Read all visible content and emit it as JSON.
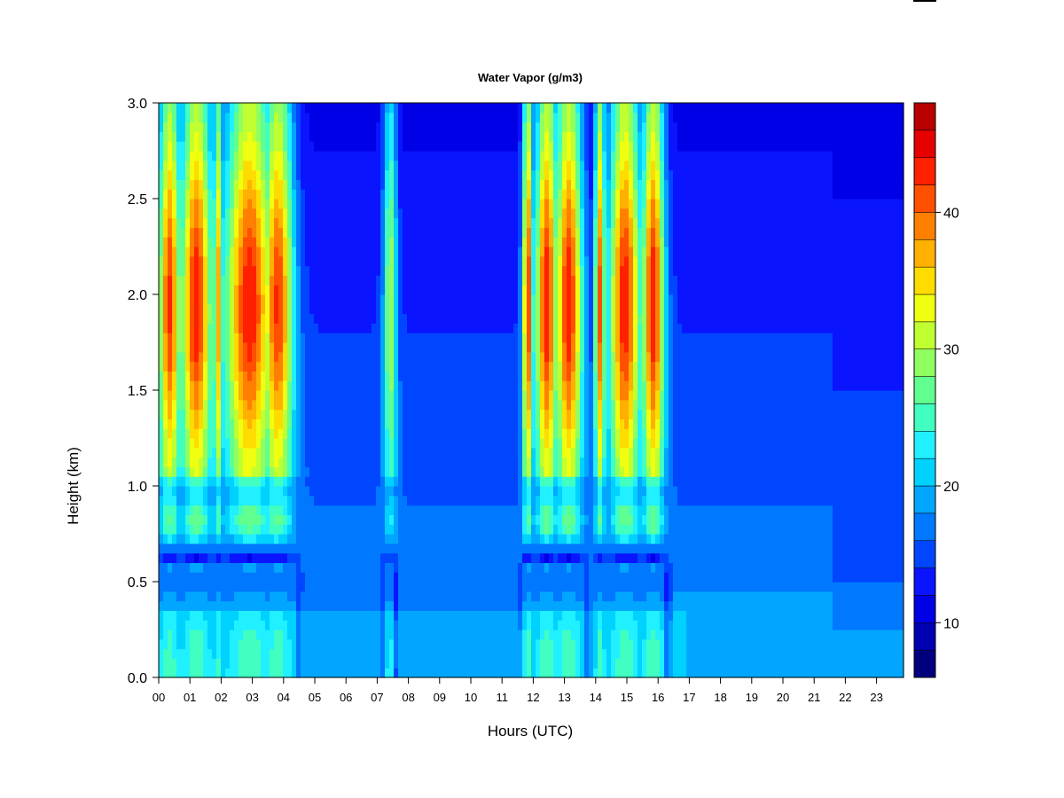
{
  "chart_data": {
    "type": "heatmap",
    "title": "Water Vapor (g/m3)",
    "xlabel": "Hours (UTC)",
    "ylabel": "Height (km)",
    "x_ticks": [
      "00",
      "01",
      "02",
      "03",
      "04",
      "05",
      "06",
      "07",
      "08",
      "09",
      "10",
      "11",
      "12",
      "13",
      "14",
      "15",
      "16",
      "17",
      "18",
      "19",
      "20",
      "21",
      "22",
      "23"
    ],
    "y_ticks": [
      "0.0",
      "0.5",
      "1.0",
      "1.5",
      "2.0",
      "2.5",
      "3.0"
    ],
    "xlim": [
      0,
      23.8
    ],
    "ylim": [
      0,
      3.0
    ],
    "colorbar": {
      "ticks": [
        "10",
        "20",
        "30",
        "40"
      ],
      "range": [
        6,
        48
      ],
      "levels": [
        6,
        8,
        10,
        12,
        14,
        16,
        18,
        20,
        22,
        24,
        26,
        28,
        30,
        32,
        34,
        36,
        38,
        40,
        42,
        44,
        46,
        48
      ],
      "colors": [
        "#00007f",
        "#0000b3",
        "#0000e6",
        "#0a14ff",
        "#0046ff",
        "#0078ff",
        "#00a6ff",
        "#00d2ff",
        "#20f0ff",
        "#40ffc0",
        "#60ff90",
        "#90ff60",
        "#c0ff30",
        "#f0ff10",
        "#ffdc00",
        "#ffb000",
        "#ff8000",
        "#ff5000",
        "#ff2000",
        "#e60000",
        "#b80000",
        "#800000"
      ]
    },
    "features": {
      "background_low": 17,
      "background_high": 12,
      "moist_bands_hours": [
        [
          0.1,
          4.6
        ],
        [
          7.2,
          7.8
        ],
        [
          11.6,
          16.3
        ]
      ],
      "dry_layer_height_km": 0.5
    }
  }
}
